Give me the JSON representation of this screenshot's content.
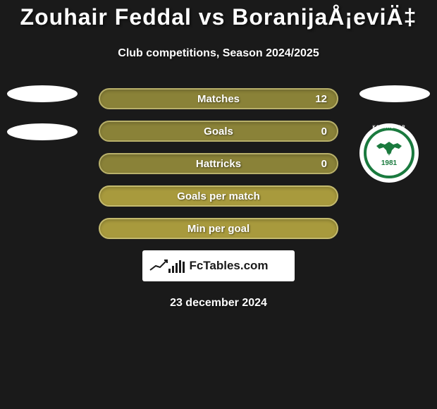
{
  "title": "Zouhair Feddal vs BoranijaÅ¡eviÄ‡",
  "subtitle": "Club competitions, Season 2024/2025",
  "date": "23 december 2024",
  "fctables_label": "FcTables.com",
  "stats": [
    {
      "label": "Matches",
      "value": "12",
      "bg": "#8a8238",
      "border": "#b8b06a"
    },
    {
      "label": "Goals",
      "value": "0",
      "bg": "#8a8238",
      "border": "#b8b06a"
    },
    {
      "label": "Hattricks",
      "value": "0",
      "bg": "#8a8238",
      "border": "#b8b06a"
    },
    {
      "label": "Goals per match",
      "value": "",
      "bg": "#a89a3d",
      "border": "#c4ba6e"
    },
    {
      "label": "Min per goal",
      "value": "",
      "bg": "#a89a3d",
      "border": "#c4ba6e"
    }
  ],
  "badges": {
    "left": {
      "oval1_bg": "#ffffff",
      "oval2_bg": "#ffffff"
    },
    "right": {
      "oval1_bg": "#ffffff",
      "konyaspor": {
        "name": "KONYASPOR",
        "year": "1981",
        "outer_bg": "#1a7a3e",
        "border": "#ffffff",
        "inner_bg": "#ffffff"
      }
    }
  },
  "colors": {
    "background": "#1a1a1a",
    "text": "#ffffff"
  },
  "fc_bars": [
    6,
    10,
    14,
    18,
    16
  ]
}
